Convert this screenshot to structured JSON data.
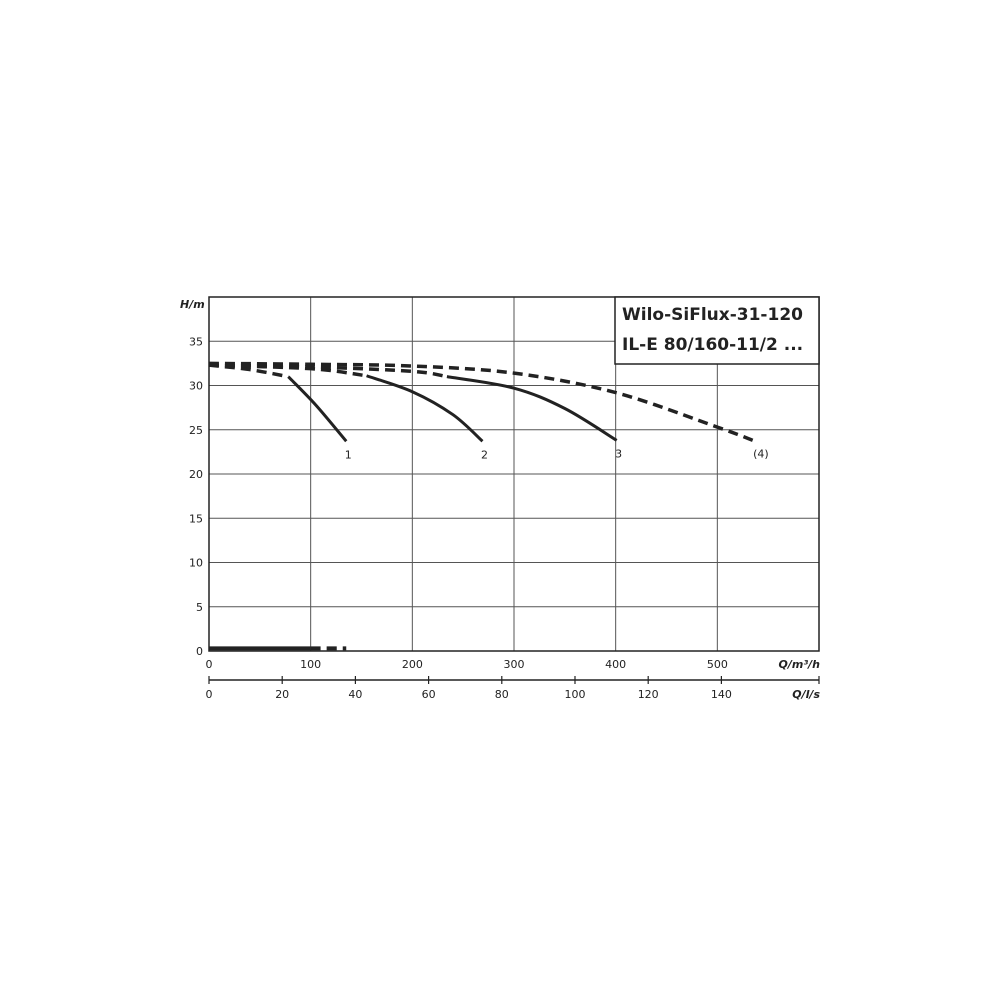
{
  "chart_data": {
    "type": "line",
    "title": [
      "Wilo-SiFlux-31-120",
      "IL-E 80/160-11/2 ..."
    ],
    "xlabel": "Q/m³/h",
    "x2label": "Q/l/s",
    "ylabel": "H/m",
    "xlim": [
      0,
      600
    ],
    "x2lim": [
      0,
      166.67
    ],
    "ylim": [
      0,
      40
    ],
    "xticks": [
      0,
      100,
      200,
      300,
      400,
      500
    ],
    "x2ticks": [
      0,
      20,
      40,
      60,
      80,
      100,
      120,
      140
    ],
    "yticks": [
      0,
      5,
      10,
      15,
      20,
      25,
      30,
      35
    ],
    "grid": true,
    "series": [
      {
        "name": "1",
        "dashed": [
          [
            0,
            32.3
          ],
          [
            40,
            31.8
          ],
          [
            78,
            31.0
          ]
        ],
        "solid": [
          [
            78,
            31.0
          ],
          [
            105,
            27.8
          ],
          [
            135,
            23.7
          ]
        ]
      },
      {
        "name": "2",
        "dashed": [
          [
            0,
            32.3
          ],
          [
            100,
            31.9
          ],
          [
            155,
            31.1
          ]
        ],
        "solid": [
          [
            155,
            31.1
          ],
          [
            200,
            29.3
          ],
          [
            240,
            26.7
          ],
          [
            269,
            23.7
          ]
        ]
      },
      {
        "name": "3",
        "dashed": [
          [
            0,
            32.3
          ],
          [
            100,
            32.1
          ],
          [
            200,
            31.6
          ],
          [
            234,
            31.0
          ]
        ],
        "solid": [
          [
            234,
            31.0
          ],
          [
            300,
            29.7
          ],
          [
            350,
            27.4
          ],
          [
            401,
            23.8
          ]
        ]
      },
      {
        "name": "(4)",
        "dashed": [
          [
            0,
            32.5
          ],
          [
            100,
            32.4
          ],
          [
            200,
            32.2
          ],
          [
            300,
            31.4
          ],
          [
            400,
            29.2
          ],
          [
            500,
            25.3
          ],
          [
            535,
            23.8
          ]
        ],
        "solid": []
      }
    ],
    "bottom_series": {
      "solid": [
        [
          0,
          0.3
        ],
        [
          100,
          0.3
        ]
      ],
      "dashed": [
        [
          100,
          0.3
        ],
        [
          135,
          0.3
        ]
      ]
    }
  }
}
